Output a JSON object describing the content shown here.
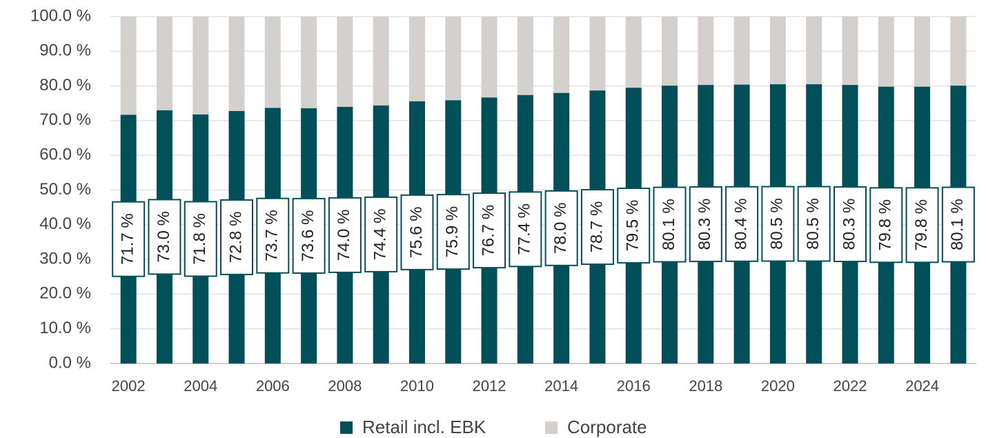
{
  "chart_data": {
    "type": "stacked_bar",
    "categories": [
      "2002",
      null,
      "2004",
      null,
      "2006",
      null,
      "2008",
      null,
      "2010",
      null,
      "2012",
      null,
      "2014",
      null,
      "2016",
      null,
      "2018",
      null,
      "2020",
      null,
      "2022",
      null,
      "2024",
      null
    ],
    "series": [
      {
        "name": "Retail incl. EBK",
        "color": "#004f59",
        "values": [
          71.7,
          73.0,
          71.8,
          72.8,
          73.7,
          73.6,
          74.0,
          74.4,
          75.6,
          75.9,
          76.7,
          77.4,
          78.0,
          78.7,
          79.5,
          80.1,
          80.3,
          80.4,
          80.5,
          80.5,
          80.3,
          79.8,
          79.8,
          80.1
        ],
        "value_labels": [
          "71.7 %",
          "73.0 %",
          "71.8 %",
          "72.8 %",
          "73.7 %",
          "73.6 %",
          "74.0 %",
          "74.4 %",
          "75.6 %",
          "75.9 %",
          "76.7 %",
          "77.4 %",
          "78.0 %",
          "78.7 %",
          "79.5 %",
          "80.1 %",
          "80.3 %",
          "80.4 %",
          "80.5 %",
          "80.5 %",
          "80.3 %",
          "79.8 %",
          "79.8 %",
          "80.1 %"
        ]
      },
      {
        "name": "Corporate",
        "color": "#d3d0ce",
        "values": [
          28.3,
          27.0,
          28.2,
          27.2,
          26.3,
          26.4,
          26.0,
          25.6,
          24.4,
          24.1,
          23.3,
          22.6,
          22.0,
          21.3,
          20.5,
          19.9,
          19.7,
          19.6,
          19.5,
          19.5,
          19.7,
          20.2,
          20.2,
          19.9
        ]
      }
    ],
    "ylim": [
      0,
      100
    ],
    "yticks": [
      {
        "value": 0,
        "label": "0.0 %"
      },
      {
        "value": 10,
        "label": "10.0 %"
      },
      {
        "value": 20,
        "label": "20.0 %"
      },
      {
        "value": 30,
        "label": "30.0 %"
      },
      {
        "value": 40,
        "label": "40.0 %"
      },
      {
        "value": 50,
        "label": "50.0 %"
      },
      {
        "value": 60,
        "label": "60.0 %"
      },
      {
        "value": 70,
        "label": "70.0 %"
      },
      {
        "value": 80,
        "label": "80.0 %"
      },
      {
        "value": 90,
        "label": "90.0 %"
      },
      {
        "value": 100,
        "label": "100.0 %"
      }
    ],
    "grid": true,
    "legend": "bottom"
  }
}
